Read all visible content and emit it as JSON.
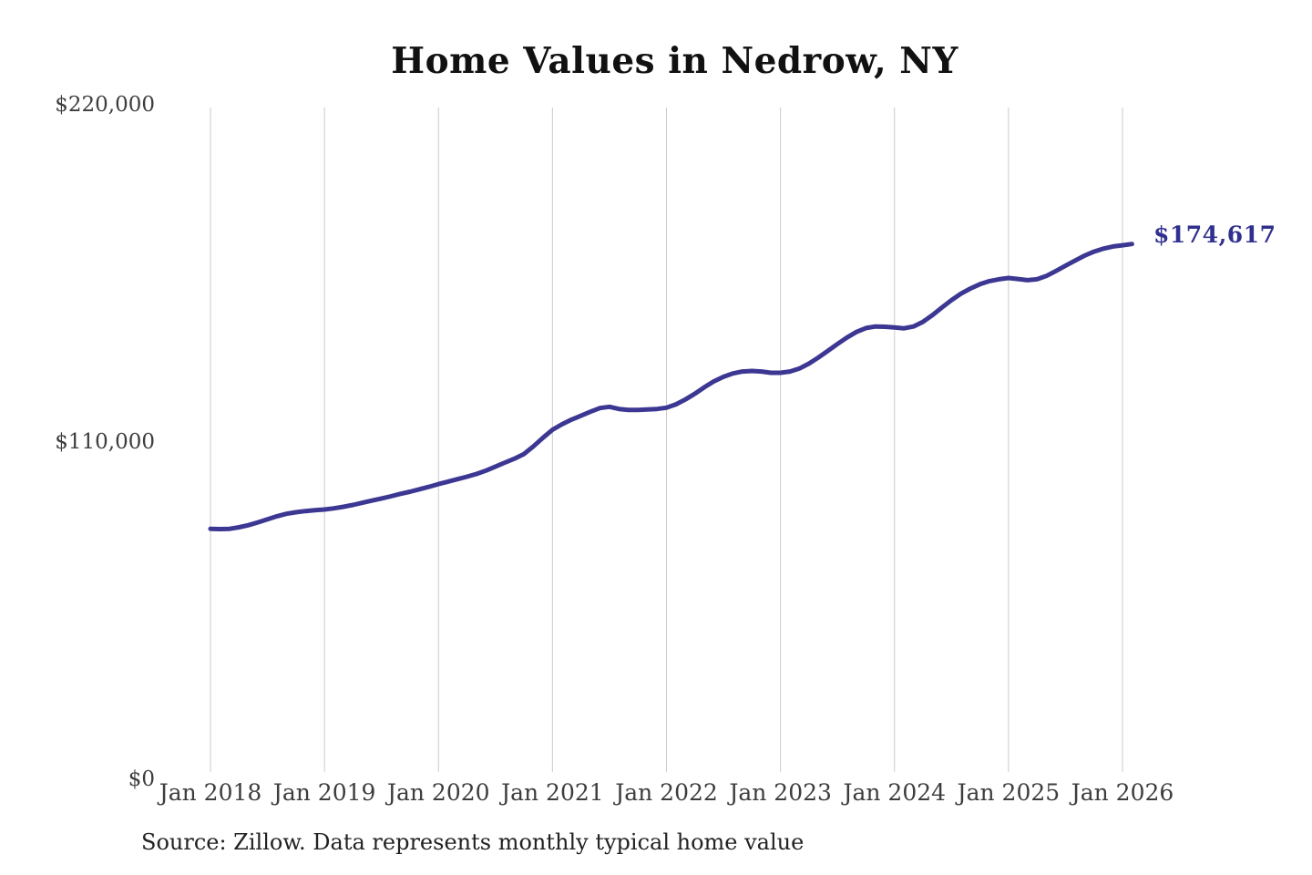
{
  "chart": {
    "title": "Home Values in Nedrow, NY",
    "latest_value_label": "$174,617",
    "source": "Source: Zillow. Data represents monthly typical home value"
  },
  "chart_data": {
    "type": "line",
    "title": "Home Values in Nedrow, NY",
    "xlabel": "",
    "ylabel": "",
    "ylim": [
      0,
      220000
    ],
    "grid": "vertical-only",
    "legend": "none",
    "line_color": "#3c3792",
    "gridline_color": "#cbcbcb",
    "axis_text_color": "#3d3d3d",
    "end_label": {
      "text": "$174,617",
      "value": 174617,
      "color": "#30318f"
    },
    "y_ticks": [
      {
        "value": 0,
        "label": "$0"
      },
      {
        "value": 110000,
        "label": "$110,000"
      },
      {
        "value": 220000,
        "label": "$220,000"
      }
    ],
    "x_ticks": [
      "Jan 2018",
      "Jan 2019",
      "Jan 2020",
      "Jan 2021",
      "Jan 2022",
      "Jan 2023",
      "Jan 2024",
      "Jan 2025",
      "Jan 2026"
    ],
    "series": [
      {
        "name": "Monthly typical home value",
        "x_start": "2018-01",
        "interval": "monthly",
        "values": [
          81700,
          81600,
          81700,
          82200,
          82900,
          83800,
          84800,
          85800,
          86600,
          87100,
          87500,
          87800,
          88000,
          88400,
          88900,
          89500,
          90200,
          90900,
          91600,
          92300,
          93100,
          93800,
          94600,
          95400,
          96300,
          97100,
          97900,
          98700,
          99600,
          100700,
          102000,
          103300,
          104600,
          106100,
          108600,
          111400,
          114000,
          115800,
          117300,
          118600,
          119900,
          121100,
          121500,
          120800,
          120500,
          120500,
          120600,
          120800,
          121200,
          122300,
          123900,
          125800,
          127900,
          129800,
          131300,
          132400,
          133000,
          133200,
          133000,
          132600,
          132600,
          133000,
          134000,
          135600,
          137600,
          139800,
          142000,
          144100,
          145900,
          147200,
          147700,
          147600,
          147400,
          147100,
          147700,
          149200,
          151400,
          153900,
          156300,
          158400,
          160100,
          161500,
          162500,
          163100,
          163500,
          163200,
          162800,
          163100,
          164200,
          165800,
          167500,
          169200,
          170800,
          172100,
          173100,
          173800,
          174200,
          174617
        ]
      }
    ]
  }
}
